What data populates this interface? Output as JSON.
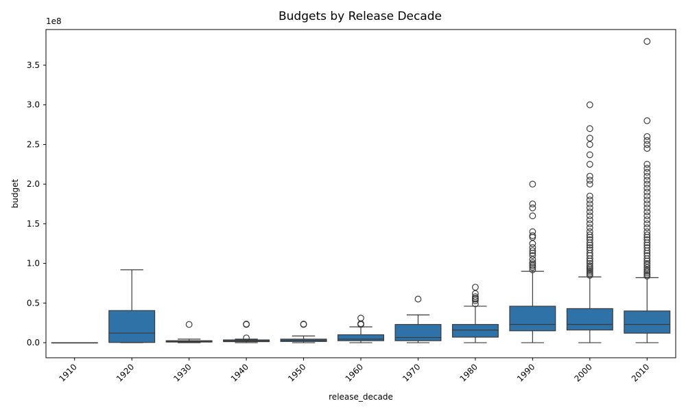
{
  "chart_data": {
    "type": "box",
    "title": "Budgets by Release Decade",
    "xlabel": "release_decade",
    "ylabel": "budget",
    "y_offset_text": "1e8",
    "ylim": [
      -0.19,
      3.95
    ],
    "y_unit_scale": "1e8",
    "yticks": [
      0.0,
      0.5,
      1.0,
      1.5,
      2.0,
      2.5,
      3.0,
      3.5
    ],
    "ytick_labels": [
      "0.0",
      "0.5",
      "1.0",
      "1.5",
      "2.0",
      "2.5",
      "3.0",
      "3.5"
    ],
    "box_color": "#2f72a8",
    "line_color": "#3a3a3a",
    "grid": false,
    "categories": [
      "1910",
      "1920",
      "1930",
      "1940",
      "1950",
      "1960",
      "1970",
      "1980",
      "1990",
      "2000",
      "2010"
    ],
    "boxes": [
      {
        "decade": "1910",
        "whislo": 0.0,
        "q1": 0.0,
        "median": 0.0,
        "q3": 0.0,
        "whishi": 0.0,
        "fliers": []
      },
      {
        "decade": "1920",
        "whislo": 0.0,
        "q1": 0.003,
        "median": 0.12,
        "q3": 0.405,
        "whishi": 0.92,
        "fliers": []
      },
      {
        "decade": "1930",
        "whislo": 0.0,
        "q1": 0.008,
        "median": 0.015,
        "q3": 0.025,
        "whishi": 0.045,
        "fliers": [
          0.23
        ]
      },
      {
        "decade": "1940",
        "whislo": 0.0,
        "q1": 0.013,
        "median": 0.022,
        "q3": 0.035,
        "whishi": 0.045,
        "fliers": [
          0.06,
          0.23,
          0.235
        ]
      },
      {
        "decade": "1950",
        "whislo": 0.0,
        "q1": 0.015,
        "median": 0.03,
        "q3": 0.045,
        "whishi": 0.085,
        "fliers": [
          0.23,
          0.235
        ]
      },
      {
        "decade": "1960",
        "whislo": 0.0,
        "q1": 0.025,
        "median": 0.045,
        "q3": 0.1,
        "whishi": 0.2,
        "fliers": [
          0.23,
          0.235,
          0.24,
          0.31
        ]
      },
      {
        "decade": "1970",
        "whislo": 0.0,
        "q1": 0.025,
        "median": 0.065,
        "q3": 0.23,
        "whishi": 0.35,
        "fliers": [
          0.55
        ]
      },
      {
        "decade": "1980",
        "whislo": 0.0,
        "q1": 0.07,
        "median": 0.16,
        "q3": 0.23,
        "whishi": 0.46,
        "fliers": [
          0.49,
          0.53,
          0.55,
          0.56,
          0.58,
          0.62,
          0.7
        ]
      },
      {
        "decade": "1990",
        "whislo": 0.0,
        "q1": 0.15,
        "median": 0.23,
        "q3": 0.46,
        "whishi": 0.9,
        "fliers": [
          0.92,
          0.95,
          0.97,
          0.99,
          1.01,
          1.05,
          1.1,
          1.13,
          1.16,
          1.2,
          1.25,
          1.33,
          1.35,
          1.4,
          1.6,
          1.7,
          1.75,
          2.0
        ]
      },
      {
        "decade": "2000",
        "whislo": 0.0,
        "q1": 0.16,
        "median": 0.23,
        "q3": 0.43,
        "whishi": 0.83,
        "fliers": [
          0.85,
          0.87,
          0.89,
          0.91,
          0.93,
          0.95,
          0.97,
          1.0,
          1.03,
          1.06,
          1.1,
          1.13,
          1.17,
          1.2,
          1.23,
          1.26,
          1.3,
          1.33,
          1.36,
          1.4,
          1.45,
          1.5,
          1.55,
          1.6,
          1.65,
          1.7,
          1.75,
          1.8,
          1.85,
          2.0,
          2.05,
          2.1,
          2.25,
          2.37,
          2.5,
          2.58,
          2.7,
          3.0
        ]
      },
      {
        "decade": "2010",
        "whislo": 0.0,
        "q1": 0.12,
        "median": 0.23,
        "q3": 0.4,
        "whishi": 0.82,
        "fliers": [
          0.84,
          0.86,
          0.88,
          0.9,
          0.92,
          0.95,
          0.98,
          1.0,
          1.03,
          1.06,
          1.1,
          1.13,
          1.16,
          1.2,
          1.23,
          1.26,
          1.3,
          1.33,
          1.36,
          1.4,
          1.45,
          1.5,
          1.55,
          1.6,
          1.65,
          1.7,
          1.75,
          1.8,
          1.85,
          1.9,
          1.95,
          2.0,
          2.05,
          2.1,
          2.15,
          2.2,
          2.25,
          2.45,
          2.5,
          2.55,
          2.6,
          2.8,
          3.8
        ]
      }
    ]
  }
}
